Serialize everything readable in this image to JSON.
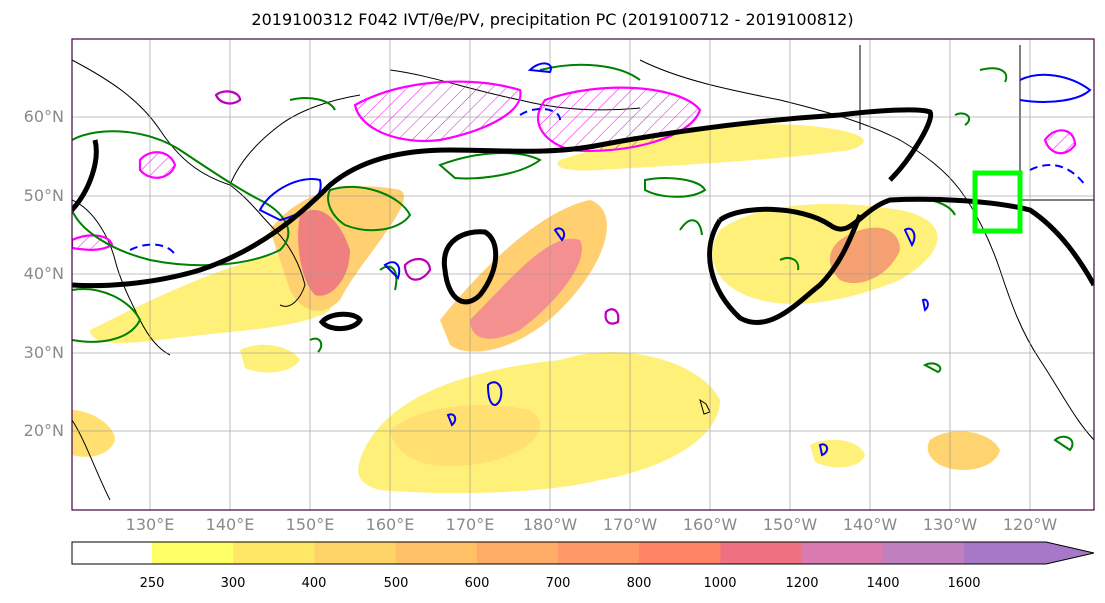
{
  "title": "2019100312 F042 IVT/θe/PV, precipitation PC (2019100712 - 2019100812)",
  "map": {
    "lon_labels": [
      "130°E",
      "140°E",
      "150°E",
      "160°E",
      "170°E",
      "180°W",
      "170°W",
      "160°W",
      "150°W",
      "140°W",
      "130°W",
      "120°W"
    ],
    "lat_labels": [
      "60°N",
      "50°N",
      "40°N",
      "30°N",
      "20°N"
    ],
    "contour_colors": {
      "theta_e": "#000000",
      "pv": "#ff00ff",
      "positive_pc": "#008000",
      "negative_pc": "#0000ff",
      "target_box": "#00ff00"
    }
  },
  "colorbar": {
    "tick_labels": [
      "250",
      "300",
      "400",
      "500",
      "600",
      "700",
      "800",
      "1000",
      "1200",
      "1400",
      "1600"
    ],
    "colors": [
      "#ffff66",
      "#ffe866",
      "#ffd466",
      "#ffc066",
      "#ffac66",
      "#ff9866",
      "#ff8466",
      "#ef7080",
      "#d97ab0",
      "#c080c0",
      "#a878c8"
    ]
  }
}
